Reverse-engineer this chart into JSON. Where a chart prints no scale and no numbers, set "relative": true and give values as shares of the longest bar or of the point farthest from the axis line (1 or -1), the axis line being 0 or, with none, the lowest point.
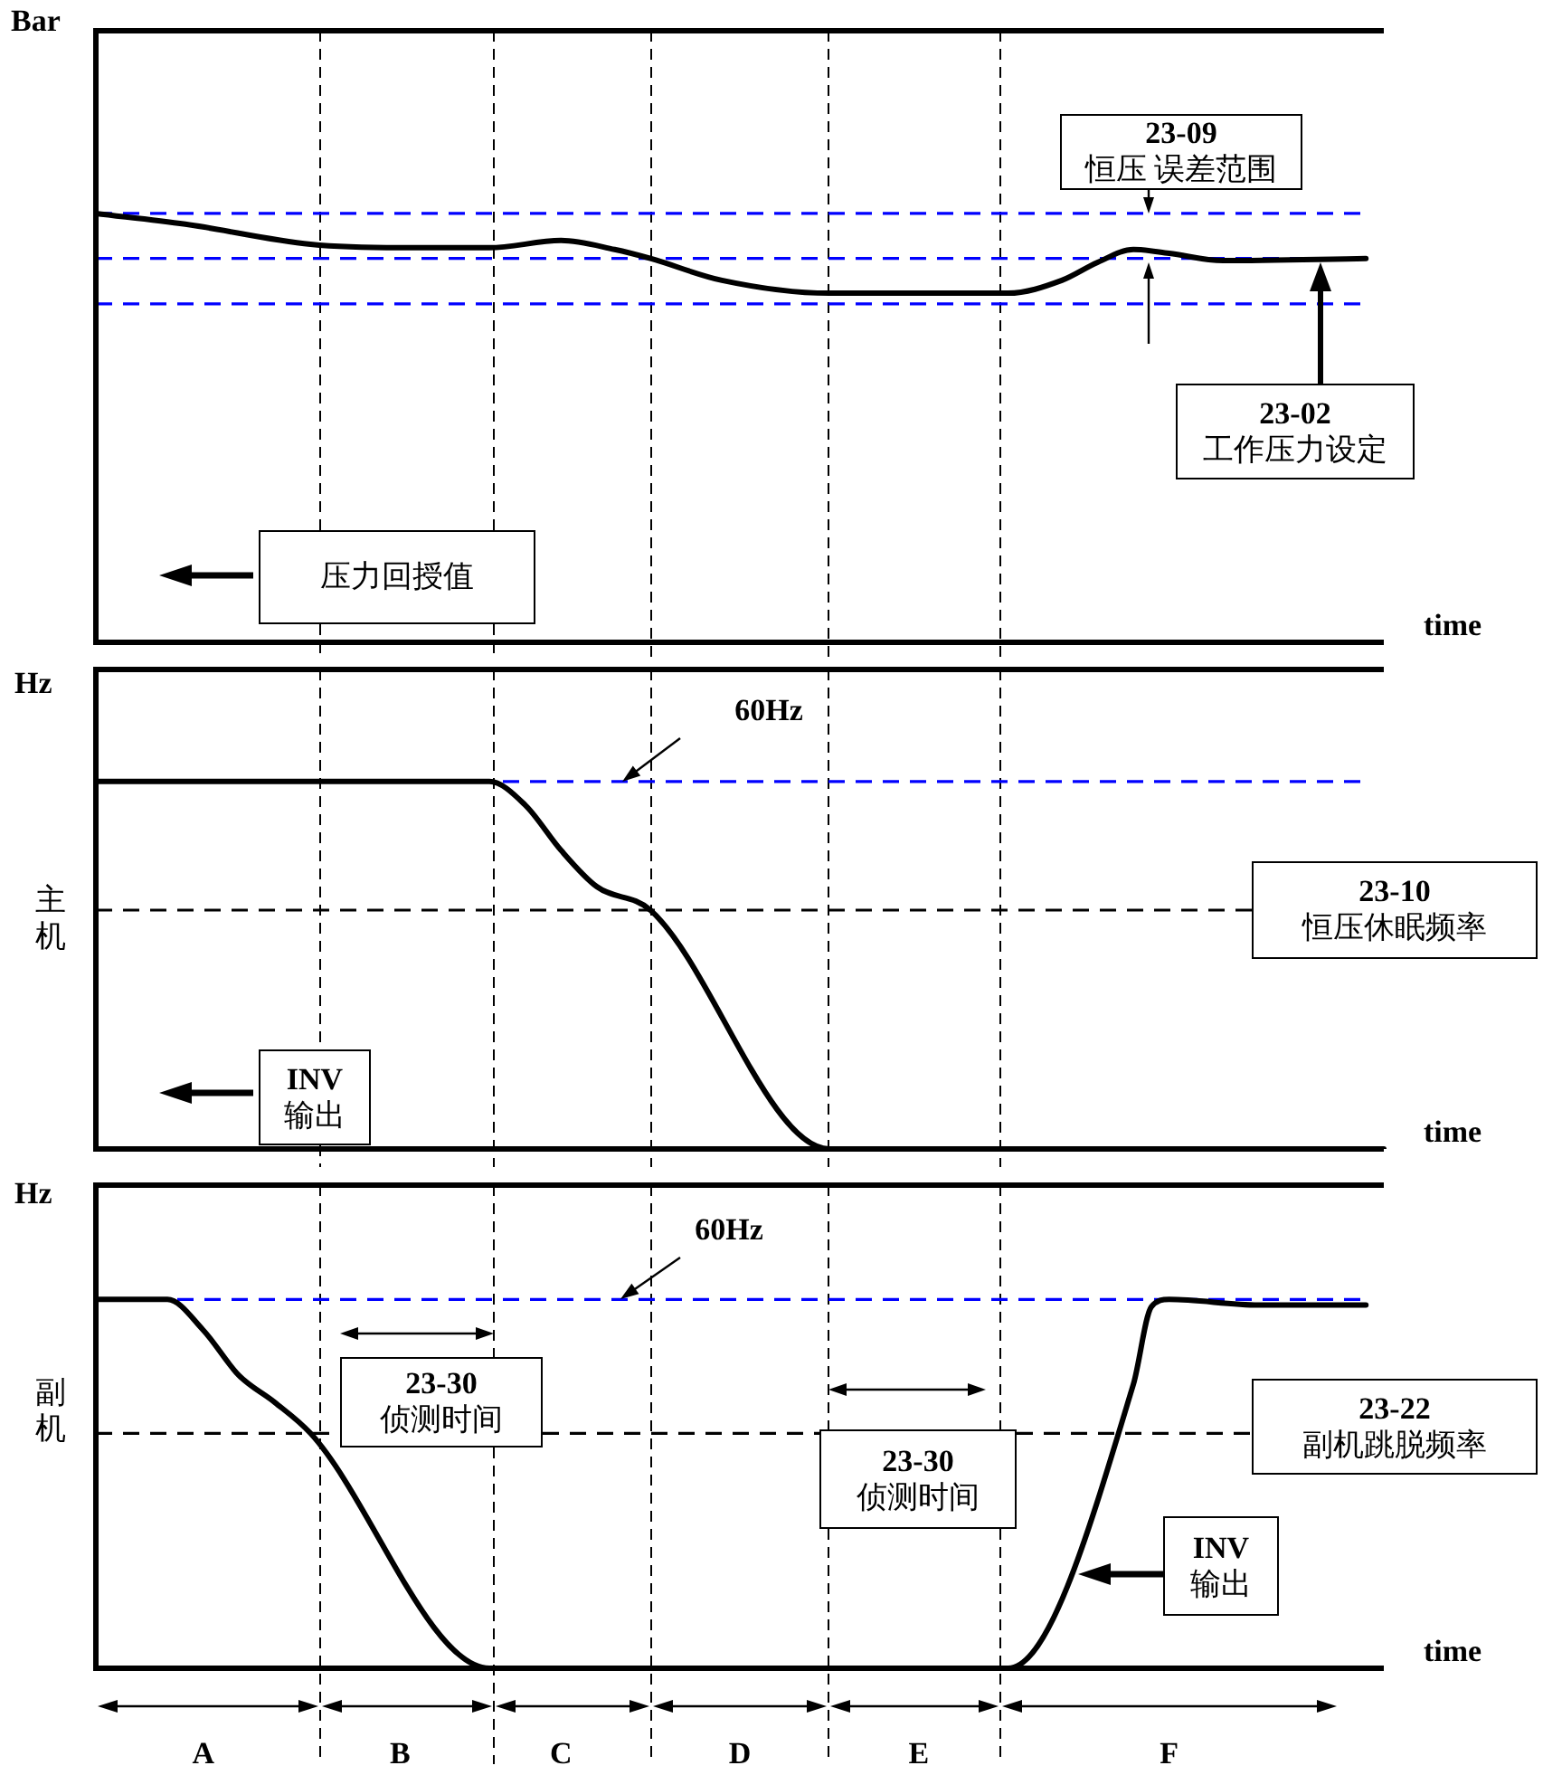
{
  "chart_data": [
    {
      "type": "line",
      "ylabel": "Bar",
      "xlabel": "time",
      "relative": true,
      "tick_labels": false,
      "grid": false,
      "legend": false,
      "marker": "none",
      "categories": [
        null,
        null,
        null,
        null,
        null,
        null,
        null,
        null,
        null,
        null,
        null,
        null,
        null,
        null,
        null,
        null,
        null,
        null,
        null,
        null,
        null,
        null,
        null,
        null,
        null,
        null,
        null,
        null,
        null,
        null,
        null,
        null,
        null,
        null,
        null,
        null,
        null,
        null,
        null,
        null,
        null,
        null,
        null,
        null,
        null,
        null,
        null,
        null,
        null,
        null,
        null,
        null,
        null,
        null,
        null,
        null,
        null,
        null,
        null,
        null,
        null,
        null,
        null,
        null,
        null,
        null,
        null,
        null,
        null,
        null,
        null,
        null,
        null
      ],
      "series": [
        {
          "color": "#000000",
          "values": [
            1,
            null,
            null,
            null,
            null,
            0.975,
            null,
            null,
            null,
            null,
            null,
            null,
            0.928,
            null,
            null,
            null,
            null,
            0.92,
            null,
            null,
            null,
            null,
            0.92,
            null,
            null,
            null,
            0.937,
            null,
            null,
            0.916,
            null,
            0.895,
            null,
            null,
            null,
            0.844,
            null,
            null,
            null,
            null,
            null,
            0.814,
            null,
            null,
            null,
            null,
            null,
            null,
            null,
            null,
            null,
            0.814,
            null,
            null,
            0.844,
            null,
            0.886,
            null,
            0.916,
            null,
            0.907,
            null,
            null,
            0.89,
            null,
            null,
            null,
            null,
            null,
            null,
            null,
            0.895,
            null
          ]
        }
      ],
      "ref_lines": [
        {
          "axis": "y",
          "value": 1,
          "color": "#0000ff",
          "line_style": "dashed"
        },
        {
          "axis": "y",
          "value": 0.895,
          "color": "#0000ff",
          "line_style": "dashed"
        },
        {
          "axis": "y",
          "value": 0.789,
          "color": "#0000ff",
          "line_style": "dashed"
        }
      ],
      "annotations": [
        "23-09\n恒压 误差范围",
        "23-02\n工作压力设定",
        "压力回授值"
      ]
    },
    {
      "type": "line",
      "ylabel": "Hz",
      "xlabel": "time",
      "relative": true,
      "tick_labels": false,
      "grid": false,
      "legend": false,
      "marker": "none",
      "categories": [
        null,
        null,
        null,
        null,
        null,
        null,
        null,
        null,
        null,
        null,
        null,
        null,
        null,
        null,
        null,
        null,
        null,
        null,
        null,
        null,
        null,
        null,
        null,
        null,
        null,
        null,
        null,
        null,
        null,
        null,
        null,
        null,
        null,
        null,
        null,
        null,
        null,
        null,
        null,
        null,
        null,
        null,
        null,
        null,
        null,
        null,
        null,
        null,
        null,
        null,
        null,
        null,
        null,
        null,
        null,
        null,
        null,
        null,
        null,
        null,
        null,
        null,
        null,
        null,
        null,
        null,
        null,
        null,
        null,
        null,
        null,
        null,
        null
      ],
      "series": [
        {
          "color": "#000000",
          "values": [
            1,
            null,
            null,
            null,
            null,
            null,
            null,
            null,
            null,
            null,
            null,
            null,
            null,
            null,
            null,
            null,
            null,
            null,
            null,
            null,
            null,
            null,
            1,
            null,
            0.936,
            null,
            0.813,
            null,
            0.714,
            null,
            null,
            0.65,
            null,
            null,
            null,
            null,
            null,
            null,
            null,
            null,
            null,
            0,
            null,
            null,
            null,
            null,
            null,
            null,
            null,
            null,
            null,
            null,
            null,
            null,
            null,
            null,
            null,
            null,
            null,
            null,
            null,
            null,
            null,
            null,
            null,
            null,
            null,
            null,
            null,
            null,
            null,
            null,
            0
          ]
        }
      ],
      "ref_lines": [
        {
          "axis": "y",
          "value": 1,
          "color": "#0000ff",
          "line_style": "dashed",
          "label": "60Hz"
        },
        {
          "axis": "y",
          "value": 0.65,
          "color": "#000000",
          "line_style": "dashed",
          "label": "23-10\n恒压休眠频率"
        }
      ],
      "annotations": [
        "主机",
        "INV\n输出"
      ]
    },
    {
      "type": "line",
      "ylabel": "Hz",
      "xlabel": "time",
      "relative": true,
      "tick_labels": "x",
      "grid": false,
      "legend": false,
      "marker": "none",
      "categories": [
        null,
        null,
        null,
        null,
        null,
        null,
        "A",
        null,
        null,
        null,
        null,
        null,
        null,
        null,
        null,
        null,
        null,
        "B",
        null,
        null,
        null,
        null,
        null,
        null,
        null,
        null,
        "C",
        null,
        null,
        null,
        null,
        null,
        null,
        null,
        null,
        null,
        "D",
        null,
        null,
        null,
        null,
        null,
        null,
        null,
        null,
        null,
        "E",
        null,
        null,
        null,
        null,
        null,
        null,
        null,
        null,
        null,
        null,
        null,
        null,
        null,
        "F",
        null,
        null,
        null,
        null,
        null,
        null,
        null,
        null,
        null,
        null,
        null,
        null
      ],
      "series": [
        {
          "color": "#000000",
          "values": [
            1,
            null,
            null,
            null,
            1,
            null,
            0.917,
            null,
            0.794,
            null,
            0.721,
            null,
            0.637,
            null,
            null,
            null,
            null,
            null,
            null,
            null,
            null,
            null,
            0,
            null,
            null,
            null,
            null,
            null,
            null,
            null,
            null,
            null,
            null,
            null,
            null,
            null,
            null,
            null,
            null,
            null,
            null,
            null,
            null,
            null,
            null,
            null,
            null,
            null,
            null,
            null,
            null,
            0,
            null,
            null,
            null,
            null,
            null,
            null,
            0.77,
            0.98,
            1,
            null,
            null,
            null,
            null,
            0.985,
            null,
            null,
            null,
            null,
            null,
            0.985,
            null
          ]
        }
      ],
      "ref_lines": [
        {
          "axis": "y",
          "value": 1,
          "color": "#0000ff",
          "line_style": "dashed",
          "label": "60Hz"
        },
        {
          "axis": "y",
          "value": 0.637,
          "color": "#000000",
          "line_style": "dashed",
          "label": "23-22\n副机跳脱频率"
        }
      ],
      "annotations": [
        "副机",
        "23-30\n侦测时间",
        "23-30\n侦测时间",
        "INV\n输出"
      ]
    }
  ]
}
